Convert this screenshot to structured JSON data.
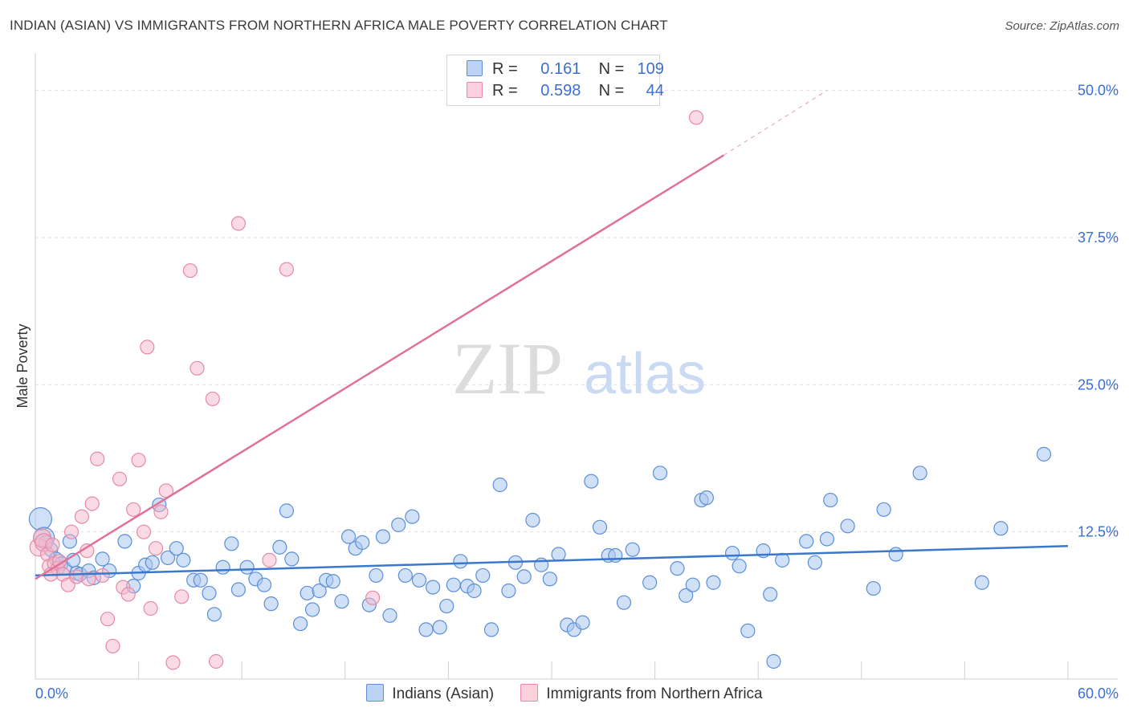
{
  "title": "INDIAN (ASIAN) VS IMMIGRANTS FROM NORTHERN AFRICA MALE POVERTY CORRELATION CHART",
  "source": "Source: ZipAtlas.com",
  "watermark": {
    "zip": "ZIP",
    "atlas": "atlas"
  },
  "legend_top": {
    "rows": [
      {
        "r_label": "R =",
        "r_value": "0.161",
        "n_label": "N =",
        "n_value": "109"
      },
      {
        "r_label": "R =",
        "r_value": "0.598",
        "n_label": "N =",
        "n_value": "44"
      }
    ]
  },
  "colors": {
    "blue_fill": "#a9c6ef",
    "blue_stroke": "#5b8fd6",
    "blue_line": "#3a78cc",
    "pink_fill": "#f5b8cb",
    "pink_stroke": "#e68aa6",
    "pink_line": "#e0719a",
    "grid": "#e2e2e2",
    "tick_label": "#3b6fd0"
  },
  "chart_data": {
    "type": "scatter",
    "xlabel": "",
    "ylabel": "Male Poverty",
    "xlim": [
      0,
      60
    ],
    "ylim": [
      0,
      52.5
    ],
    "x_tick_labels": [
      "0.0%",
      "60.0%"
    ],
    "y_ticks": [
      12.5,
      25.0,
      37.5,
      50.0
    ],
    "y_tick_labels": [
      "12.5%",
      "25.0%",
      "37.5%",
      "50.0%"
    ],
    "grid": true,
    "legend": "bottom-center",
    "series": [
      {
        "name": "Indians (Asian)",
        "color": "#a9c6ef",
        "trend": {
          "x0": 0,
          "y0": 8.8,
          "x1": 60,
          "y1": 11.3
        },
        "points": [
          [
            0.3,
            13.6
          ],
          [
            0.5,
            12.0
          ],
          [
            0.6,
            11.6
          ],
          [
            0.9,
            11.0
          ],
          [
            1.2,
            10.2
          ],
          [
            1.5,
            9.8
          ],
          [
            1.7,
            9.4
          ],
          [
            2.0,
            11.7
          ],
          [
            2.2,
            10.1
          ],
          [
            2.4,
            9.0
          ],
          [
            2.6,
            8.9
          ],
          [
            3.1,
            9.2
          ],
          [
            3.4,
            8.6
          ],
          [
            3.9,
            10.2
          ],
          [
            4.3,
            9.2
          ],
          [
            5.2,
            11.7
          ],
          [
            5.7,
            7.9
          ],
          [
            6.0,
            9.0
          ],
          [
            6.4,
            9.7
          ],
          [
            6.8,
            9.9
          ],
          [
            7.2,
            14.8
          ],
          [
            7.7,
            10.3
          ],
          [
            8.2,
            11.1
          ],
          [
            8.6,
            10.1
          ],
          [
            9.2,
            8.4
          ],
          [
            9.6,
            8.4
          ],
          [
            10.1,
            7.3
          ],
          [
            10.4,
            5.5
          ],
          [
            10.9,
            9.5
          ],
          [
            11.4,
            11.5
          ],
          [
            11.8,
            7.6
          ],
          [
            12.3,
            9.5
          ],
          [
            12.8,
            8.5
          ],
          [
            13.3,
            8.0
          ],
          [
            13.7,
            6.4
          ],
          [
            14.2,
            11.2
          ],
          [
            14.6,
            14.3
          ],
          [
            14.9,
            10.2
          ],
          [
            15.4,
            4.7
          ],
          [
            15.8,
            7.3
          ],
          [
            16.1,
            5.9
          ],
          [
            16.5,
            7.5
          ],
          [
            16.9,
            8.4
          ],
          [
            17.3,
            8.3
          ],
          [
            17.8,
            6.6
          ],
          [
            18.2,
            12.1
          ],
          [
            18.6,
            11.1
          ],
          [
            19.0,
            11.6
          ],
          [
            19.4,
            6.3
          ],
          [
            19.8,
            8.8
          ],
          [
            20.2,
            12.1
          ],
          [
            20.6,
            5.4
          ],
          [
            21.1,
            13.1
          ],
          [
            21.5,
            8.8
          ],
          [
            21.9,
            13.8
          ],
          [
            22.3,
            8.4
          ],
          [
            22.7,
            4.2
          ],
          [
            23.1,
            7.8
          ],
          [
            23.5,
            4.4
          ],
          [
            23.9,
            6.2
          ],
          [
            24.3,
            8.0
          ],
          [
            24.7,
            10.0
          ],
          [
            25.1,
            7.9
          ],
          [
            25.5,
            7.5
          ],
          [
            26.0,
            8.8
          ],
          [
            26.5,
            4.2
          ],
          [
            27.0,
            16.5
          ],
          [
            27.5,
            7.5
          ],
          [
            27.9,
            9.9
          ],
          [
            28.4,
            8.7
          ],
          [
            28.9,
            13.5
          ],
          [
            29.4,
            9.7
          ],
          [
            29.9,
            8.5
          ],
          [
            30.4,
            10.6
          ],
          [
            30.9,
            4.6
          ],
          [
            31.3,
            4.2
          ],
          [
            31.8,
            4.8
          ],
          [
            32.3,
            16.8
          ],
          [
            32.8,
            12.9
          ],
          [
            33.3,
            10.5
          ],
          [
            33.7,
            10.5
          ],
          [
            34.2,
            6.5
          ],
          [
            34.7,
            11.0
          ],
          [
            35.7,
            8.2
          ],
          [
            36.3,
            17.5
          ],
          [
            37.3,
            9.4
          ],
          [
            37.8,
            7.1
          ],
          [
            38.2,
            8.0
          ],
          [
            38.7,
            15.2
          ],
          [
            39.0,
            15.4
          ],
          [
            39.4,
            8.2
          ],
          [
            40.5,
            10.7
          ],
          [
            40.9,
            9.6
          ],
          [
            41.4,
            4.1
          ],
          [
            42.3,
            10.9
          ],
          [
            42.7,
            7.2
          ],
          [
            42.9,
            1.5
          ],
          [
            43.4,
            10.1
          ],
          [
            44.8,
            11.7
          ],
          [
            45.3,
            9.9
          ],
          [
            46.0,
            11.9
          ],
          [
            46.2,
            15.2
          ],
          [
            47.2,
            13.0
          ],
          [
            48.7,
            7.7
          ],
          [
            49.3,
            14.4
          ],
          [
            50.0,
            10.6
          ],
          [
            51.4,
            17.5
          ],
          [
            55.0,
            8.2
          ],
          [
            56.1,
            12.8
          ],
          [
            58.6,
            19.1
          ]
        ]
      },
      {
        "name": "Immigrants from Northern Africa",
        "color": "#f5b8cb",
        "trend": {
          "x0": 0,
          "y0": 8.5,
          "x1": 40,
          "y1": 44.5,
          "dash_x1": 46,
          "dash_y1": 50.0
        },
        "points": [
          [
            0.2,
            11.2
          ],
          [
            0.4,
            12.0
          ],
          [
            0.5,
            11.6
          ],
          [
            0.7,
            10.6
          ],
          [
            0.8,
            9.6
          ],
          [
            1.0,
            11.4
          ],
          [
            1.1,
            9.8
          ],
          [
            1.3,
            9.4
          ],
          [
            1.4,
            10.0
          ],
          [
            1.6,
            8.9
          ],
          [
            1.9,
            8.0
          ],
          [
            2.1,
            12.5
          ],
          [
            2.7,
            13.8
          ],
          [
            3.0,
            10.9
          ],
          [
            3.3,
            14.9
          ],
          [
            3.6,
            18.7
          ],
          [
            3.9,
            8.8
          ],
          [
            4.2,
            5.1
          ],
          [
            4.5,
            2.8
          ],
          [
            4.9,
            17.0
          ],
          [
            5.1,
            7.8
          ],
          [
            5.4,
            7.2
          ],
          [
            5.7,
            14.4
          ],
          [
            6.0,
            18.6
          ],
          [
            6.3,
            12.5
          ],
          [
            6.5,
            28.2
          ],
          [
            6.7,
            6.0
          ],
          [
            7.0,
            11.1
          ],
          [
            7.3,
            14.2
          ],
          [
            7.6,
            16.0
          ],
          [
            8.0,
            1.4
          ],
          [
            8.5,
            7.0
          ],
          [
            9.0,
            34.7
          ],
          [
            9.4,
            26.4
          ],
          [
            10.3,
            23.8
          ],
          [
            10.5,
            1.5
          ],
          [
            11.8,
            38.7
          ],
          [
            13.6,
            10.1
          ],
          [
            14.6,
            34.8
          ],
          [
            19.6,
            6.9
          ],
          [
            38.4,
            47.7
          ],
          [
            2.4,
            8.7
          ],
          [
            0.9,
            8.9
          ],
          [
            3.1,
            8.5
          ]
        ]
      }
    ]
  }
}
